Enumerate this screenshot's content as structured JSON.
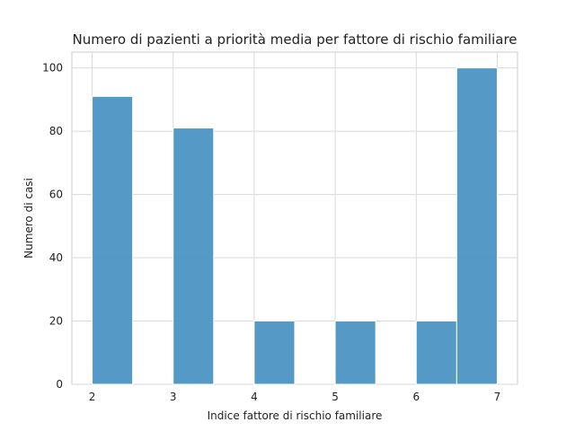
{
  "chart_data": {
    "type": "bar",
    "title": "Numero di pazienti a priorità media per fattore di rischio familiare",
    "xlabel": "Indice fattore di rischio familiare",
    "ylabel": "Numero di casi",
    "bins": [
      {
        "x0": 2.0,
        "x1": 2.5,
        "value": 91
      },
      {
        "x0": 2.5,
        "x1": 3.0,
        "value": 0
      },
      {
        "x0": 3.0,
        "x1": 3.5,
        "value": 81
      },
      {
        "x0": 3.5,
        "x1": 4.0,
        "value": 0
      },
      {
        "x0": 4.0,
        "x1": 4.5,
        "value": 20
      },
      {
        "x0": 4.5,
        "x1": 5.0,
        "value": 0
      },
      {
        "x0": 5.0,
        "x1": 5.5,
        "value": 20
      },
      {
        "x0": 5.5,
        "x1": 6.0,
        "value": 0
      },
      {
        "x0": 6.0,
        "x1": 6.5,
        "value": 20
      },
      {
        "x0": 6.5,
        "x1": 7.0,
        "value": 100
      }
    ],
    "xticks": [
      "2",
      "3",
      "4",
      "5",
      "6",
      "7"
    ],
    "yticks": [
      "0",
      "20",
      "40",
      "60",
      "80",
      "100"
    ],
    "xlim": [
      1.75,
      7.25
    ],
    "ylim": [
      0,
      105
    ],
    "grid": true,
    "bar_color": "#4c93c3"
  }
}
